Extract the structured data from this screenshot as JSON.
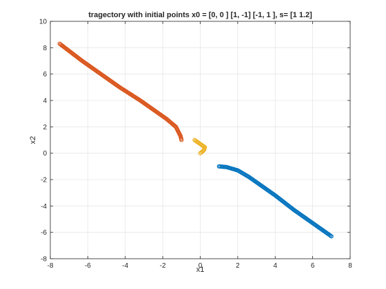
{
  "chart_data": {
    "type": "scatter",
    "title": "tragectory with initial points x0 = [0, 0 ] [1, -1] [-1, 1 ], s= [1 1.2]",
    "xlabel": "x1",
    "ylabel": "x2",
    "xlim": [
      -8,
      8
    ],
    "ylim": [
      -8,
      10
    ],
    "xticks": [
      -8,
      -6,
      -4,
      -2,
      0,
      2,
      4,
      6,
      8
    ],
    "yticks": [
      -8,
      -6,
      -4,
      -2,
      0,
      2,
      4,
      6,
      8,
      10
    ],
    "grid": true,
    "marker": "circle",
    "series": [
      {
        "color": "#0072BD",
        "points": [
          [
            1.0,
            -1.0
          ],
          [
            1.4,
            -1.05
          ],
          [
            2.0,
            -1.3
          ],
          [
            2.6,
            -1.8
          ],
          [
            3.2,
            -2.4
          ],
          [
            4.0,
            -3.2
          ],
          [
            5.0,
            -4.3
          ],
          [
            6.0,
            -5.3
          ],
          [
            7.0,
            -6.3
          ]
        ]
      },
      {
        "color": "#D95319",
        "points": [
          [
            -1.0,
            1.0
          ],
          [
            -1.05,
            1.3
          ],
          [
            -1.3,
            2.0
          ],
          [
            -1.8,
            2.6
          ],
          [
            -2.4,
            3.2
          ],
          [
            -3.2,
            4.0
          ],
          [
            -4.3,
            5.0
          ],
          [
            -5.3,
            6.0
          ],
          [
            -6.3,
            7.0
          ],
          [
            -7.5,
            8.3
          ]
        ]
      },
      {
        "color": "#EDB120",
        "points": [
          [
            -0.3,
            1.0
          ],
          [
            -0.1,
            0.8
          ],
          [
            0.1,
            0.6
          ],
          [
            0.25,
            0.45
          ],
          [
            0.2,
            0.25
          ],
          [
            0.1,
            0.1
          ],
          [
            0.0,
            0.0
          ]
        ]
      }
    ]
  }
}
